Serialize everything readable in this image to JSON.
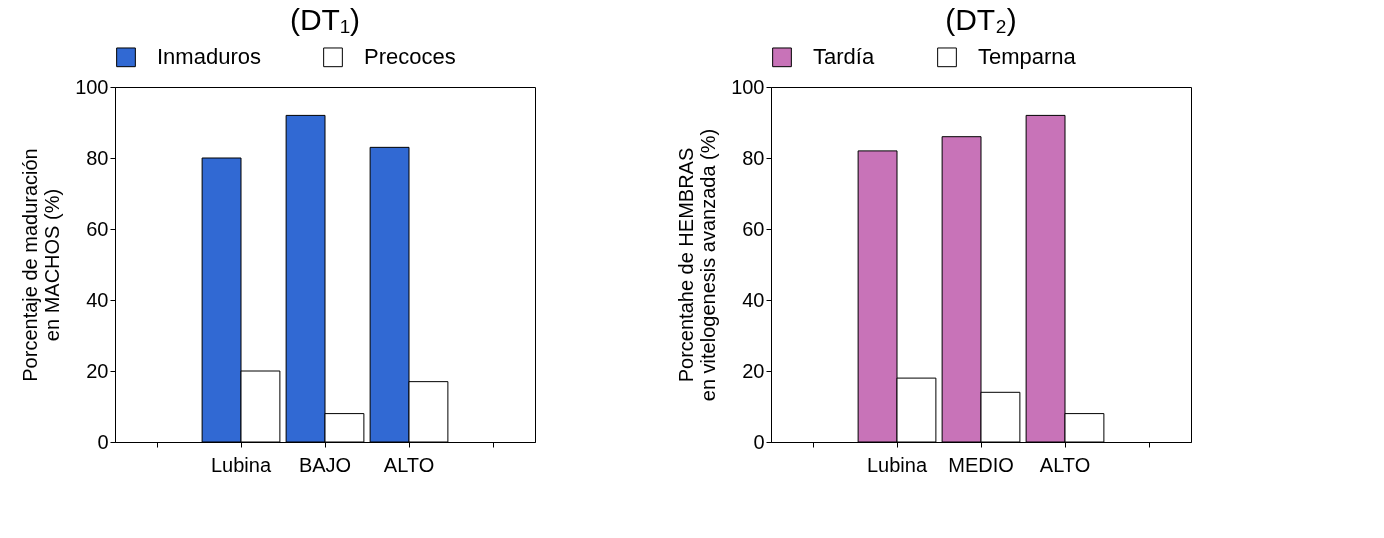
{
  "chart_data": [
    {
      "type": "bar",
      "title": "(DT₁)",
      "ylabel": "Porcentaje de maduración\nen MACHOS (%)",
      "categories": [
        null,
        "Lubina",
        "BAJO",
        "ALTO",
        null
      ],
      "ylim": [
        0,
        100
      ],
      "yticks": [
        0,
        20,
        40,
        60,
        80,
        100
      ],
      "legend": "top",
      "grid": false,
      "series": [
        {
          "name": "Inmaduros",
          "color": "#3169d3",
          "values": [
            null,
            80,
            92,
            83,
            null
          ]
        },
        {
          "name": "Precoces",
          "color": "#ffffff",
          "values": [
            null,
            20,
            8,
            17,
            null
          ]
        }
      ]
    },
    {
      "type": "bar",
      "title": "(DT₂)",
      "ylabel": "Porcentahe de HEMBRAS\nen vitelogenesis avanzada (%)",
      "categories": [
        null,
        "Lubina",
        "MEDIO",
        "ALTO",
        null
      ],
      "ylim": [
        0,
        100
      ],
      "yticks": [
        0,
        20,
        40,
        60,
        80,
        100
      ],
      "legend": "top",
      "grid": false,
      "series": [
        {
          "name": "Tardía",
          "color": "#c873b8",
          "values": [
            null,
            82,
            86,
            92,
            null
          ]
        },
        {
          "name": "Temparna",
          "color": "#ffffff",
          "values": [
            null,
            18,
            14,
            8,
            null
          ]
        }
      ]
    }
  ]
}
